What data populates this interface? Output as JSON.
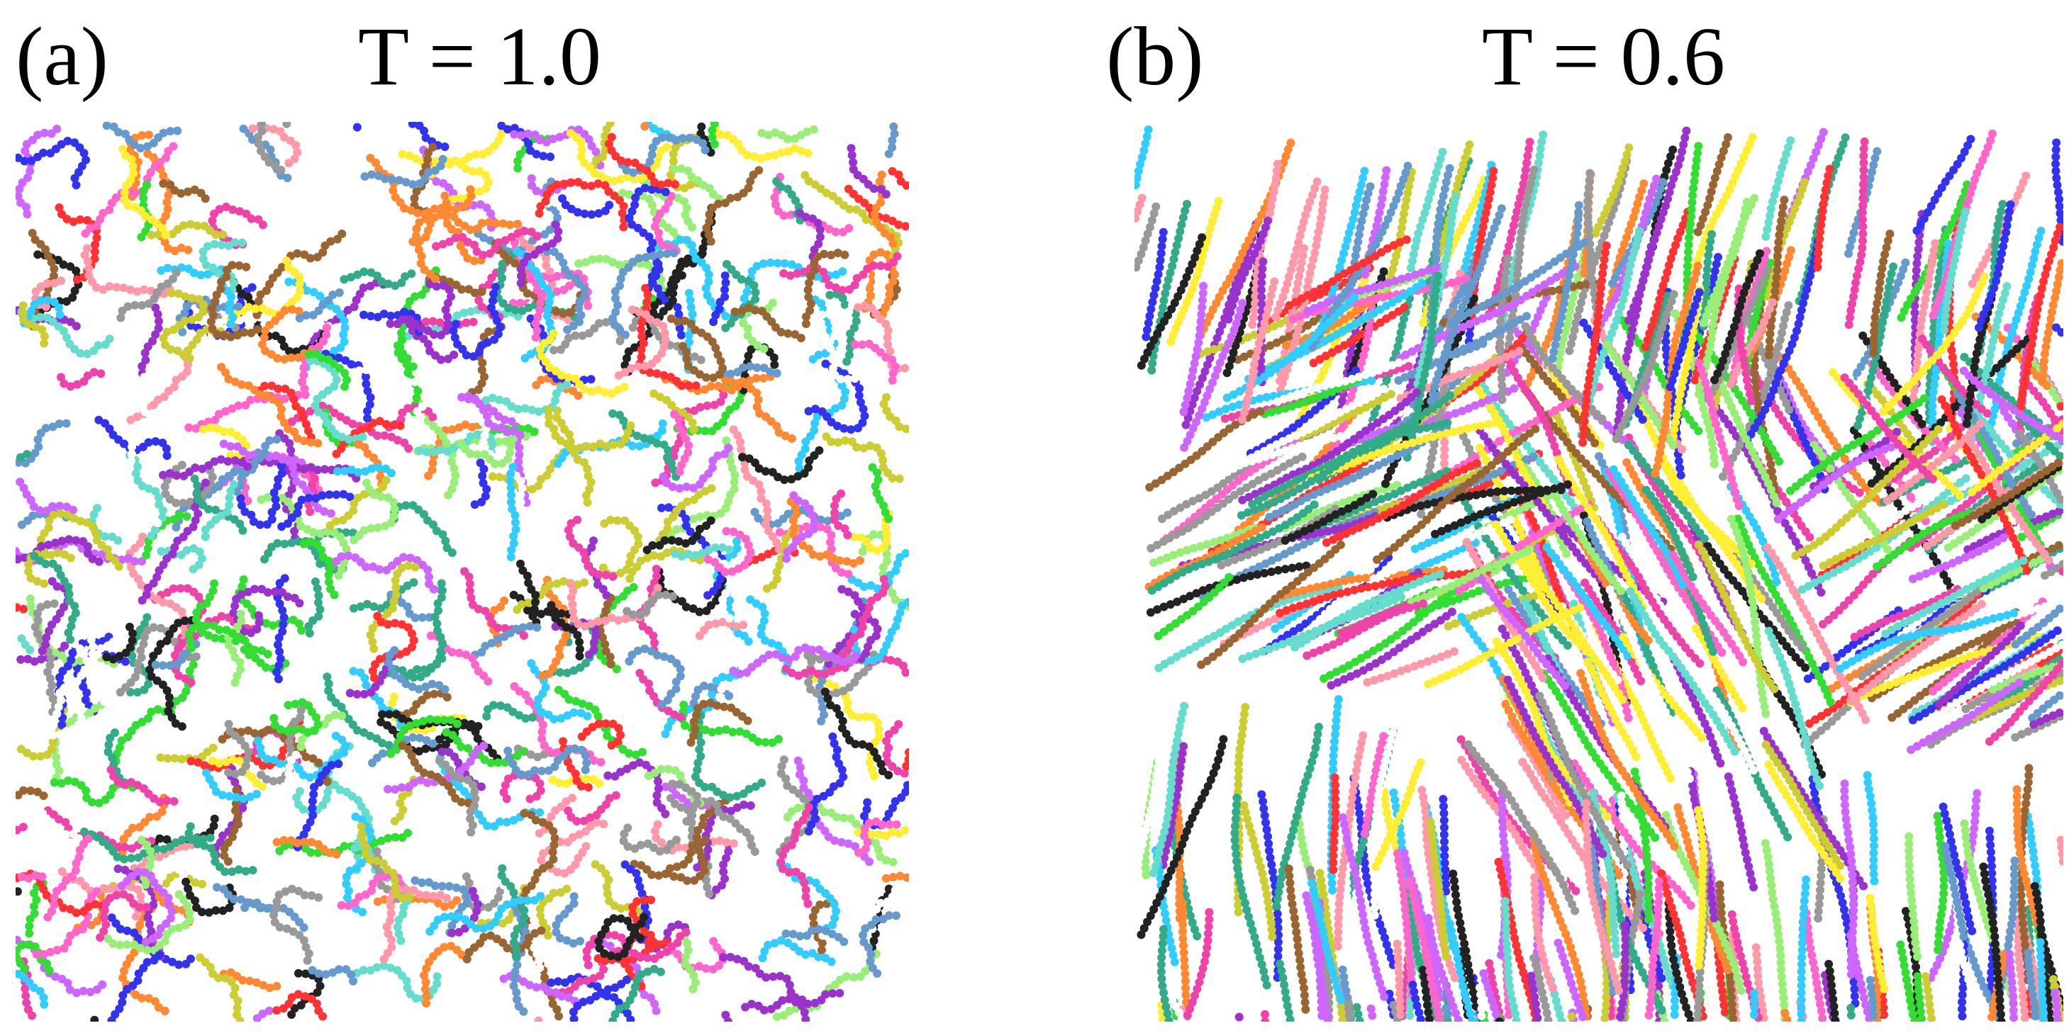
{
  "panels": [
    {
      "id": "a",
      "letter": "(a)",
      "title": "T = 1.0",
      "style": "disordered"
    },
    {
      "id": "b",
      "letter": "(b)",
      "title": "T = 0.6",
      "style": "aligned"
    }
  ],
  "palette": [
    "#ff3333",
    "#33dd33",
    "#3333ee",
    "#ffee33",
    "#ff66cc",
    "#33ccff",
    "#ff8833",
    "#9933cc",
    "#999999",
    "#66ddcc",
    "#996633",
    "#222222",
    "#ff99aa",
    "#99ee77",
    "#6699cc",
    "#cc66ff",
    "#ffffff",
    "#cccc33",
    "#33aa88",
    "#ee44aa"
  ]
}
